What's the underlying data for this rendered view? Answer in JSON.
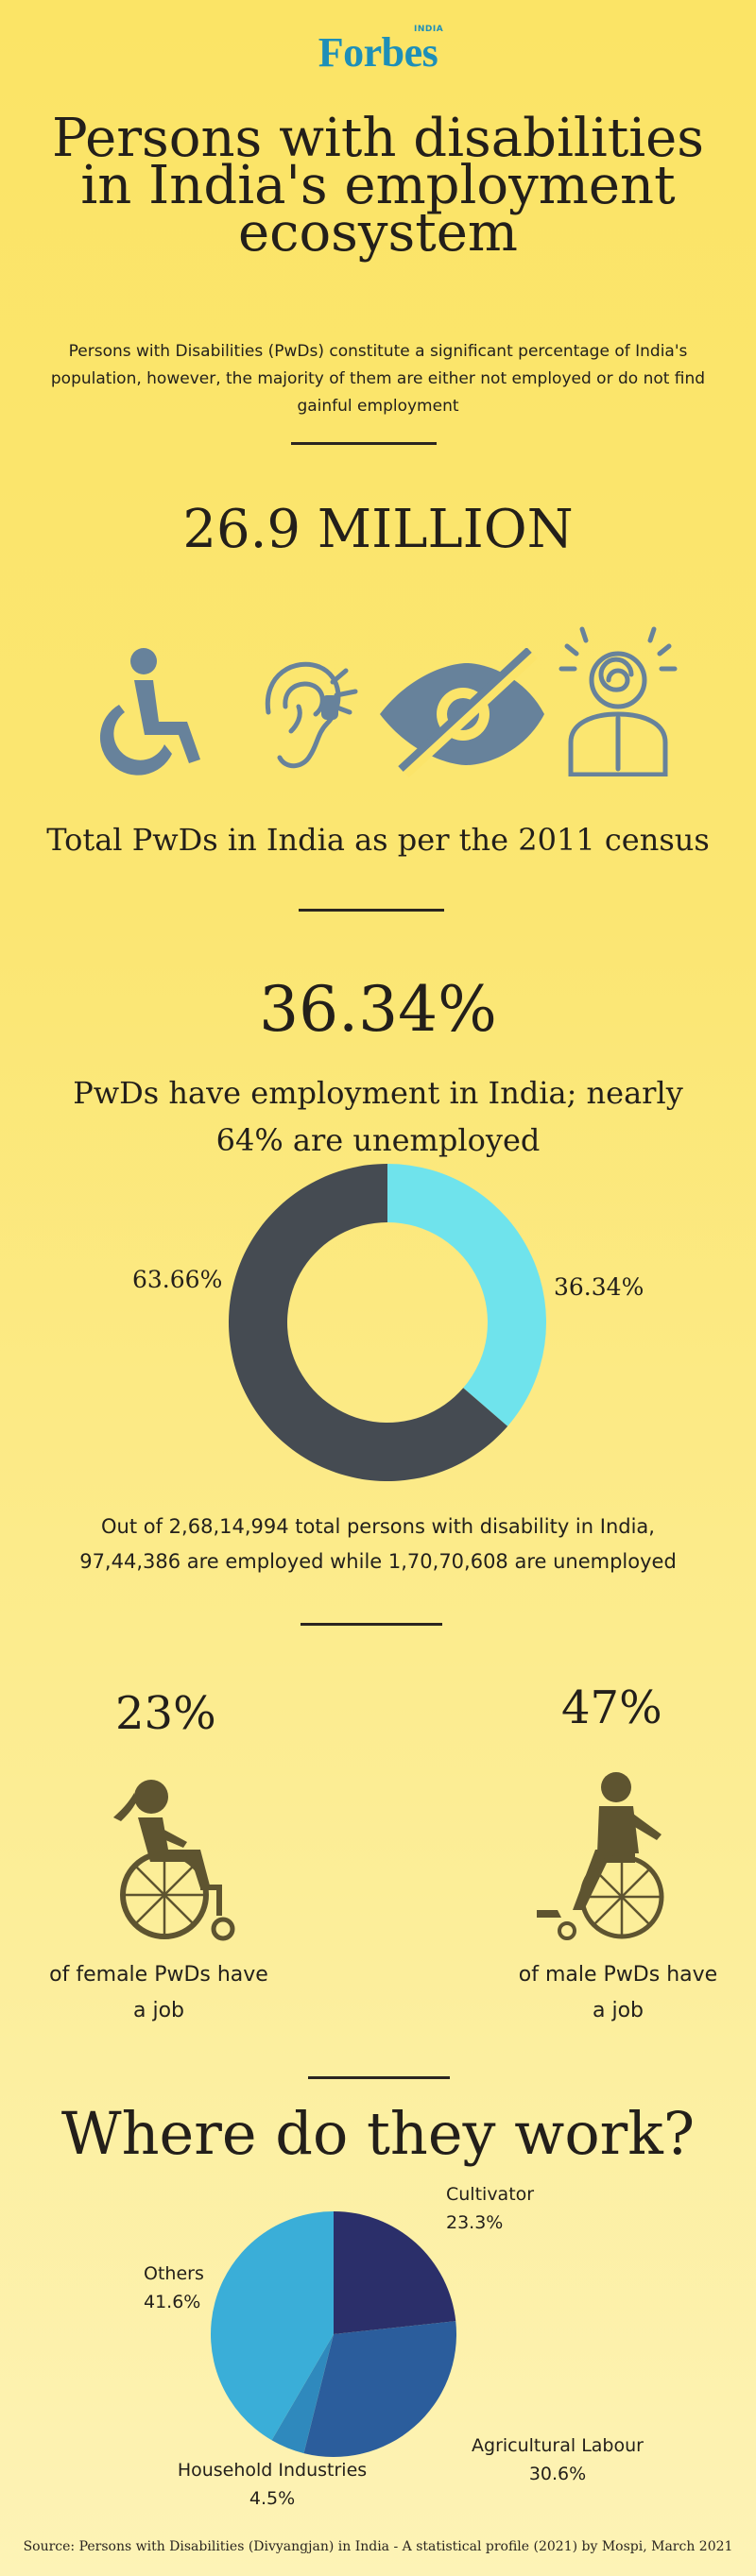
{
  "brand": {
    "logo": "Forbes",
    "edition": "INDIA"
  },
  "header": {
    "title_lines": [
      "Persons with disabilities",
      "in India's employment",
      "ecosystem"
    ],
    "intro": "Persons with Disabilities (PwDs) constitute a significant percentage of India's population, however, the majority of them are either not employed or do not find gainful employment"
  },
  "total": {
    "value": "26.9 MILLION",
    "caption": "Total PwDs in India as per the 2011 census",
    "icons": [
      "wheelchair-icon",
      "hearing-impairment-icon",
      "visual-impairment-icon",
      "mental-disability-icon"
    ]
  },
  "employment": {
    "headline": "36.34%",
    "caption_line1": "PwDs have employment in India; nearly",
    "caption_line2": "64% are unemployed",
    "detail_line1": "Out of 2,68,14,994 total persons with disability in India,",
    "detail_line2": "97,44,386 are employed while 1,70,70,608 are unemployed"
  },
  "gender": {
    "female": {
      "pct": "23%",
      "caption_line1": "of female PwDs have",
      "caption_line2": "a job"
    },
    "male": {
      "pct": "47%",
      "caption_line1": "of male PwDs have",
      "caption_line2": "a job"
    }
  },
  "work": {
    "title": "Where do they work?"
  },
  "source": "Source: Persons with Disabilities (Divyangjan) in India - A statistical profile (2021) by Mospi, March 2021",
  "colors": {
    "background": "#fbe466",
    "icon": "#67829b",
    "donut_employed": "#6fe3ec",
    "donut_unemployed": "#454b52",
    "pie_cultivator": "#2b2f6a",
    "pie_agricultural": "#2b5d9c",
    "pie_household": "#2f89bd",
    "pie_others": "#3aaed8",
    "figure": "#5e5430"
  },
  "chart_data": [
    {
      "type": "pie",
      "variant": "donut",
      "categories": [
        "Employed",
        "Unemployed"
      ],
      "values": [
        36.34,
        63.66
      ],
      "labels": [
        "36.34%",
        "63.66%"
      ]
    },
    {
      "type": "pie",
      "title": "Where do they work?",
      "categories": [
        "Cultivator",
        "Agricultural Labour",
        "Household Industries",
        "Others"
      ],
      "values": [
        23.3,
        30.6,
        4.5,
        41.6
      ],
      "labels": [
        "23.3%",
        "30.6%",
        "4.5%",
        "41.6%"
      ]
    }
  ]
}
